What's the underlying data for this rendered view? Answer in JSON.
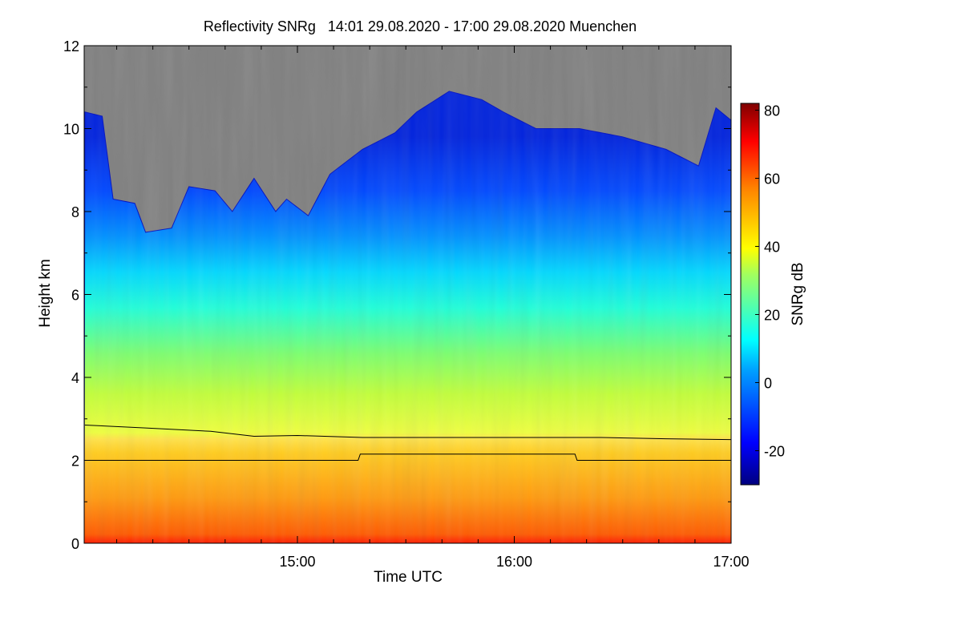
{
  "chart_data": {
    "type": "heatmap",
    "title": "Reflectivity SNRg   14:01 29.08.2020 - 17:00 29.08.2020 Muenchen",
    "xlabel": "Time UTC",
    "ylabel": "Height km",
    "xlim_hours": [
      14.0167,
      17.0
    ],
    "ylim_km": [
      0,
      12
    ],
    "x_ticks": [
      {
        "value": 15,
        "label": "15:00"
      },
      {
        "value": 16,
        "label": "16:00"
      },
      {
        "value": 17,
        "label": "17:00"
      }
    ],
    "y_ticks": [
      {
        "value": 0,
        "label": "0"
      },
      {
        "value": 2,
        "label": "2"
      },
      {
        "value": 4,
        "label": "4"
      },
      {
        "value": 6,
        "label": "6"
      },
      {
        "value": 8,
        "label": "8"
      },
      {
        "value": 10,
        "label": "10"
      },
      {
        "value": 12,
        "label": "12"
      }
    ],
    "colorbar": {
      "label": "SNRg dB",
      "range": [
        -30,
        82
      ],
      "ticks": [
        {
          "value": -20,
          "label": "-20"
        },
        {
          "value": 0,
          "label": "0"
        },
        {
          "value": 20,
          "label": "20"
        },
        {
          "value": 40,
          "label": "40"
        },
        {
          "value": 60,
          "label": "60"
        },
        {
          "value": 80,
          "label": "80"
        }
      ],
      "colormap": "jet"
    },
    "no_signal_color": "#808080",
    "signal_top_km": [
      [
        14.02,
        10.4
      ],
      [
        14.1,
        10.3
      ],
      [
        14.15,
        8.3
      ],
      [
        14.25,
        8.2
      ],
      [
        14.3,
        7.5
      ],
      [
        14.42,
        7.6
      ],
      [
        14.5,
        8.6
      ],
      [
        14.62,
        8.5
      ],
      [
        14.7,
        8.0
      ],
      [
        14.8,
        8.8
      ],
      [
        14.9,
        8.0
      ],
      [
        14.95,
        8.3
      ],
      [
        15.05,
        7.9
      ],
      [
        15.15,
        8.9
      ],
      [
        15.3,
        9.5
      ],
      [
        15.45,
        9.9
      ],
      [
        15.55,
        10.4
      ],
      [
        15.7,
        10.9
      ],
      [
        15.85,
        10.7
      ],
      [
        15.95,
        10.4
      ],
      [
        16.1,
        10.0
      ],
      [
        16.3,
        10.0
      ],
      [
        16.5,
        9.8
      ],
      [
        16.7,
        9.5
      ],
      [
        16.85,
        9.1
      ],
      [
        16.93,
        10.5
      ],
      [
        17.0,
        10.2
      ]
    ],
    "series": [
      {
        "name": "upper-layer-line",
        "color": "#000000",
        "points": [
          [
            14.02,
            2.85
          ],
          [
            14.3,
            2.78
          ],
          [
            14.6,
            2.7
          ],
          [
            14.8,
            2.58
          ],
          [
            15.0,
            2.6
          ],
          [
            15.3,
            2.55
          ],
          [
            15.5,
            2.55
          ],
          [
            15.8,
            2.55
          ],
          [
            16.1,
            2.55
          ],
          [
            16.4,
            2.55
          ],
          [
            16.7,
            2.52
          ],
          [
            17.0,
            2.5
          ]
        ]
      },
      {
        "name": "lower-layer-line",
        "color": "#000000",
        "points": [
          [
            14.02,
            2.0
          ],
          [
            15.28,
            2.0
          ],
          [
            15.29,
            2.15
          ],
          [
            16.28,
            2.15
          ],
          [
            16.29,
            2.0
          ],
          [
            17.0,
            2.0
          ]
        ]
      }
    ]
  }
}
